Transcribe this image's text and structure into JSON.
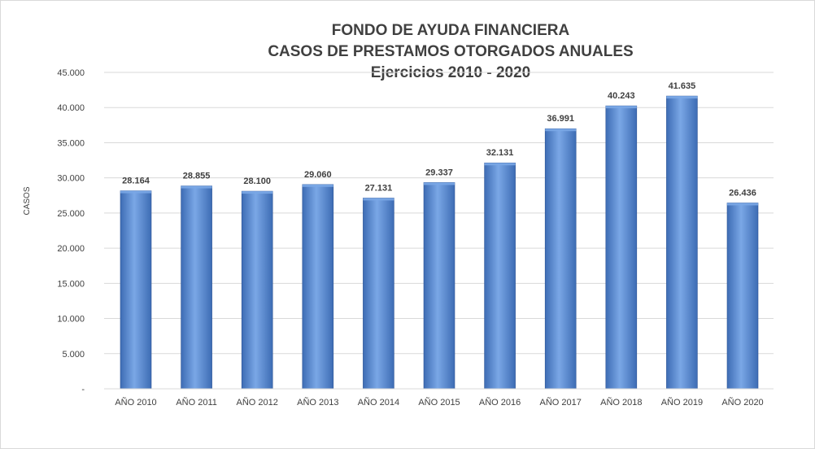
{
  "chart_data": {
    "type": "bar",
    "title": [
      "FONDO DE AYUDA FINANCIERA",
      "CASOS DE PRESTAMOS  OTORGADOS  ANUALES",
      "Ejercicios  2010 - 2020"
    ],
    "xlabel": "",
    "ylabel": "CASOS",
    "categories": [
      "AÑO 2010",
      "AÑO 2011",
      "AÑO 2012",
      "AÑO 2013",
      "AÑO 2014",
      "AÑO 2015",
      "AÑO 2016",
      "AÑO 2017",
      "AÑO 2018",
      "AÑO 2019",
      "AÑO 2020"
    ],
    "values": [
      28164,
      28855,
      28100,
      29060,
      27131,
      29337,
      32131,
      36991,
      40243,
      41635,
      26436
    ],
    "data_labels": [
      "28.164",
      "28.855",
      "28.100",
      "29.060",
      "27.131",
      "29.337",
      "32.131",
      "36.991",
      "40.243",
      "41.635",
      "26.436"
    ],
    "ylim": [
      0,
      45000
    ],
    "yticks": [
      0,
      5000,
      10000,
      15000,
      20000,
      25000,
      30000,
      35000,
      40000,
      45000
    ],
    "ytick_labels": [
      "-",
      "5.000",
      "10.000",
      "15.000",
      "20.000",
      "25.000",
      "30.000",
      "35.000",
      "40.000",
      "45.000"
    ],
    "grid": true,
    "legend": "none",
    "colors": {
      "bar_light": "#7aa7e6",
      "bar_mid": "#5b8fd6",
      "bar_dark": "#3d6cb4",
      "bar_edge": "#2f5597",
      "grid": "#d9d9d9",
      "text": "#404040"
    }
  }
}
